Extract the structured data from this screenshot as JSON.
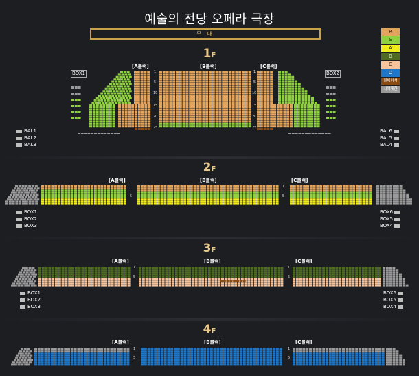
{
  "title": "예술의 전당 오페라 극장",
  "stage": "무 대",
  "legend": [
    {
      "label": "R",
      "color": "#e3a45c"
    },
    {
      "label": "S",
      "color": "#8fd13f"
    },
    {
      "label": "A",
      "color": "#f2ee1c"
    },
    {
      "label": "B",
      "color": "#4f6b22"
    },
    {
      "label": "C",
      "color": "#f6c39a"
    },
    {
      "label": "D",
      "color": "#1e77c9"
    },
    {
      "label": "휠체어석",
      "color": "#8a4b12"
    },
    {
      "label": "시야제한",
      "color": "#9a9a9a"
    }
  ],
  "floors": [
    {
      "num": "1",
      "unit": "F"
    },
    {
      "num": "2",
      "unit": "F"
    },
    {
      "num": "3",
      "unit": "F"
    },
    {
      "num": "4",
      "unit": "F"
    }
  ],
  "blocks": {
    "a": "[A블럭]",
    "b": "[B블럭]",
    "c": "[C블럭]"
  },
  "f1": {
    "box_left": "BOX1",
    "box_right": "BOX2",
    "bal_left": [
      "BAL1",
      "BAL2",
      "BAL3"
    ],
    "bal_right": [
      "BAL6",
      "BAL5",
      "BAL4"
    ],
    "rows": [
      "1",
      "5",
      "10",
      "15",
      "20",
      "25"
    ]
  },
  "f2": {
    "box_left": [
      "BOX1",
      "BOX2",
      "BOX3"
    ],
    "box_right": [
      "BOX6",
      "BOX5",
      "BOX4"
    ],
    "rows": [
      "1",
      "5"
    ]
  },
  "f3": {
    "box_left": [
      "BOX1",
      "BOX2",
      "BOX3"
    ],
    "box_right": [
      "BOX6",
      "BOX5",
      "BOX4"
    ],
    "rows": [
      "1",
      "5"
    ]
  },
  "f4": {
    "rows": [
      "1",
      "5"
    ]
  }
}
